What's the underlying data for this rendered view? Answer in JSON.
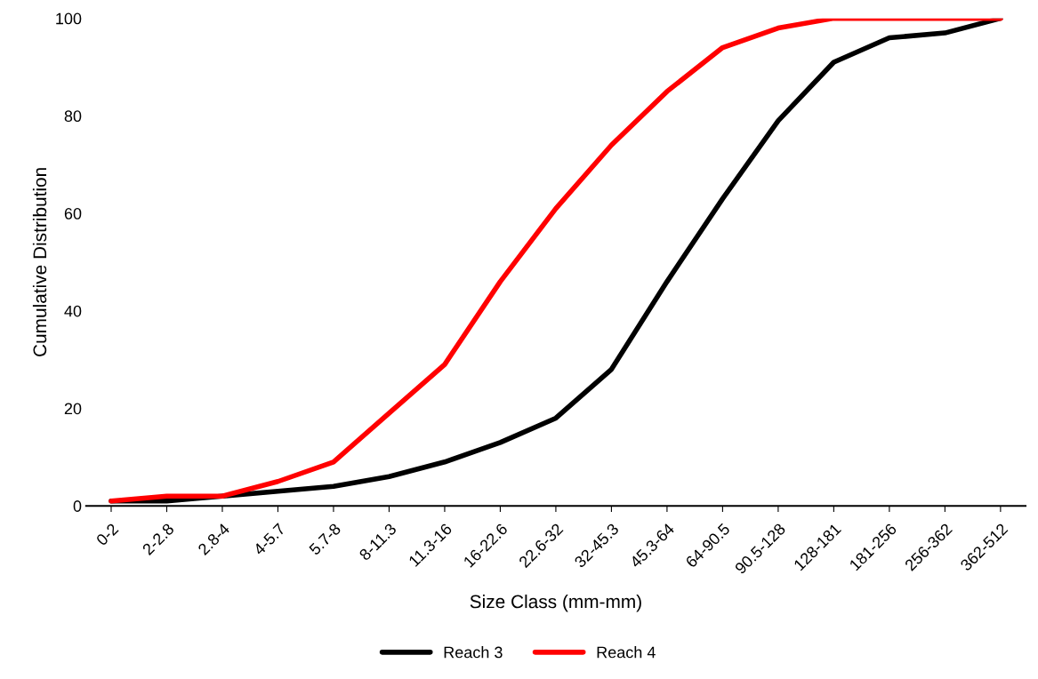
{
  "chart_data": {
    "type": "line",
    "xlabel": "Size Class (mm-mm)",
    "ylabel": "Cumulative Distribution",
    "categories": [
      "0-2",
      "2-2.8",
      "2.8-4",
      "4-5.7",
      "5.7-8",
      "8-11.3",
      "11.3-16",
      "16-22.6",
      "22.6-32",
      "32-45.3",
      "45.3-64",
      "64-90.5",
      "90.5-128",
      "128-181",
      "181-256",
      "256-362",
      "362-512"
    ],
    "series": [
      {
        "name": "Reach 3",
        "color": "#000000",
        "values": [
          1,
          1,
          2,
          3,
          4,
          6,
          9,
          13,
          18,
          28,
          46,
          63,
          79,
          91,
          96,
          97,
          100
        ]
      },
      {
        "name": "Reach 4",
        "color": "#ff0000",
        "values": [
          1,
          2,
          2,
          5,
          9,
          19,
          29,
          46,
          61,
          74,
          85,
          94,
          98,
          100,
          100,
          100,
          100
        ]
      }
    ],
    "ylim": [
      0,
      100
    ],
    "yticks": [
      0,
      20,
      40,
      60,
      80,
      100
    ],
    "grid": false,
    "legend": "bottom",
    "marker": "none",
    "line_style": "solid"
  }
}
